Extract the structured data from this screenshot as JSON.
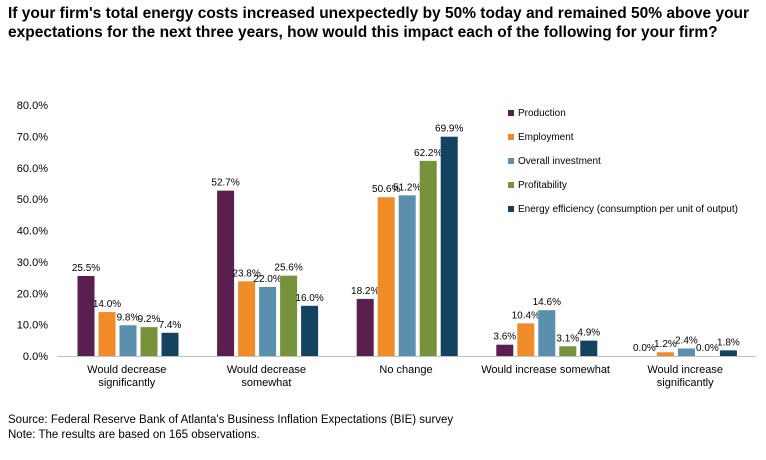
{
  "chart_data": {
    "type": "bar",
    "title": "If your firm's total energy costs increased unexpectedly by 50% today and remained 50% above your expectations for the next three years, how would this impact each of the following for your firm?",
    "categories": [
      [
        "Would decrease",
        "significantly"
      ],
      [
        "Would decrease",
        "somewhat"
      ],
      [
        "No change"
      ],
      [
        "Would increase somewhat"
      ],
      [
        "Would increase",
        "significantly"
      ]
    ],
    "series": [
      {
        "name": "Production",
        "color": "#5a1f4f",
        "values": [
          25.5,
          52.7,
          18.2,
          3.6,
          0.0
        ]
      },
      {
        "name": "Employment",
        "color": "#f08c28",
        "values": [
          14.0,
          23.8,
          50.6,
          10.4,
          1.2
        ]
      },
      {
        "name": "Overall investment",
        "color": "#5b8fae",
        "values": [
          9.8,
          22.0,
          51.2,
          14.6,
          2.4
        ]
      },
      {
        "name": "Profitability",
        "color": "#78923c",
        "values": [
          9.2,
          25.6,
          62.2,
          3.1,
          0.0
        ]
      },
      {
        "name": "Energy efficiency (consumption per unit of output)",
        "color": "#14435f",
        "values": [
          7.4,
          16.0,
          69.9,
          4.9,
          1.8
        ]
      }
    ],
    "ylim": [
      0,
      80
    ],
    "yticks": [
      "0.0%",
      "10.0%",
      "20.0%",
      "30.0%",
      "40.0%",
      "50.0%",
      "60.0%",
      "70.0%",
      "80.0%"
    ],
    "xlabel": "",
    "ylabel": "",
    "legend_position": "top-right",
    "value_suffix": "%"
  },
  "footer": {
    "source": "Source: Federal Reserve Bank of Atlanta's Business Inflation Expectations (BIE) survey",
    "note": "Note: The results are based on 165 observations."
  }
}
